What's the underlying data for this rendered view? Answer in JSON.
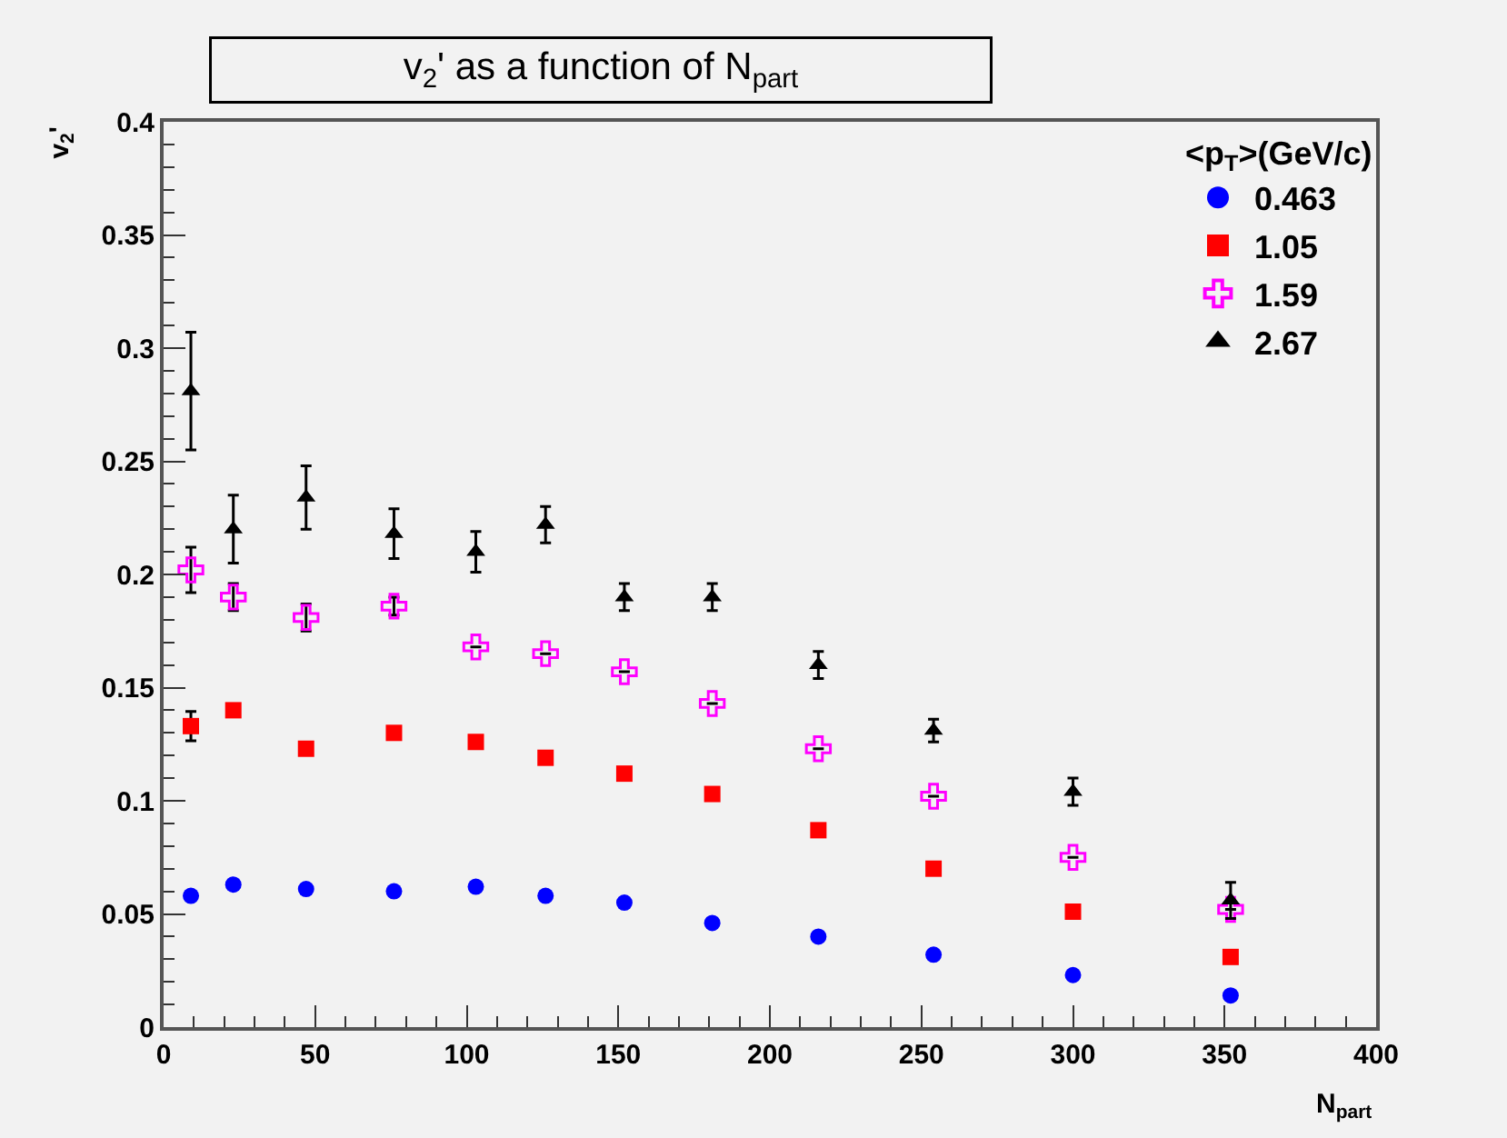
{
  "chart_data": {
    "type": "scatter",
    "title": "v$_{2}$' as a function of N$_{part}$",
    "xlabel": "N$_{part}$",
    "ylabel": "v$_{2}$'",
    "legend_title": "<p$_{T}$>(GeV/c)",
    "x": [
      9,
      23,
      47,
      76,
      103,
      126,
      152,
      181,
      216,
      254,
      300,
      352
    ],
    "xlim": [
      0,
      400
    ],
    "xticks": [
      0,
      50,
      100,
      150,
      200,
      250,
      300,
      350,
      400
    ],
    "ylim": [
      0,
      0.4
    ],
    "yticks": [
      0,
      0.05,
      0.1,
      0.15,
      0.2,
      0.25,
      0.3,
      0.35,
      0.4
    ],
    "grid": false,
    "legend": "top right",
    "series": [
      {
        "name": "0.463",
        "color": "#0000ff",
        "marker": "circle",
        "values": [
          0.058,
          0.063,
          0.061,
          0.06,
          0.062,
          0.058,
          0.055,
          0.046,
          0.04,
          0.032,
          0.023,
          0.014
        ]
      },
      {
        "name": "1.05",
        "color": "#ff0000",
        "marker": "square",
        "values": [
          0.133,
          0.14,
          0.123,
          0.13,
          0.126,
          0.119,
          0.112,
          0.103,
          0.087,
          0.07,
          0.051,
          0.031
        ],
        "errors": [
          0.0065,
          null,
          null,
          null,
          null,
          null,
          null,
          null,
          null,
          null,
          null,
          null
        ]
      },
      {
        "name": "1.59",
        "color": "#ff00ff",
        "marker": "cross",
        "values": [
          0.202,
          0.19,
          0.181,
          0.186,
          0.168,
          0.165,
          0.157,
          0.143,
          0.123,
          0.102,
          0.075,
          0.052
        ],
        "errors": [
          0.01,
          0.006,
          0.006,
          0.004,
          null,
          null,
          null,
          null,
          null,
          null,
          null,
          null
        ]
      },
      {
        "name": "2.67",
        "color": "#000000",
        "marker": "triangle",
        "values": [
          0.281,
          0.22,
          0.234,
          0.218,
          0.21,
          0.222,
          0.19,
          0.19,
          0.16,
          0.131,
          0.104,
          0.056
        ],
        "errors": [
          0.026,
          0.015,
          0.014,
          0.011,
          0.009,
          0.008,
          0.006,
          0.006,
          0.006,
          0.005,
          0.006,
          0.008
        ]
      }
    ]
  }
}
